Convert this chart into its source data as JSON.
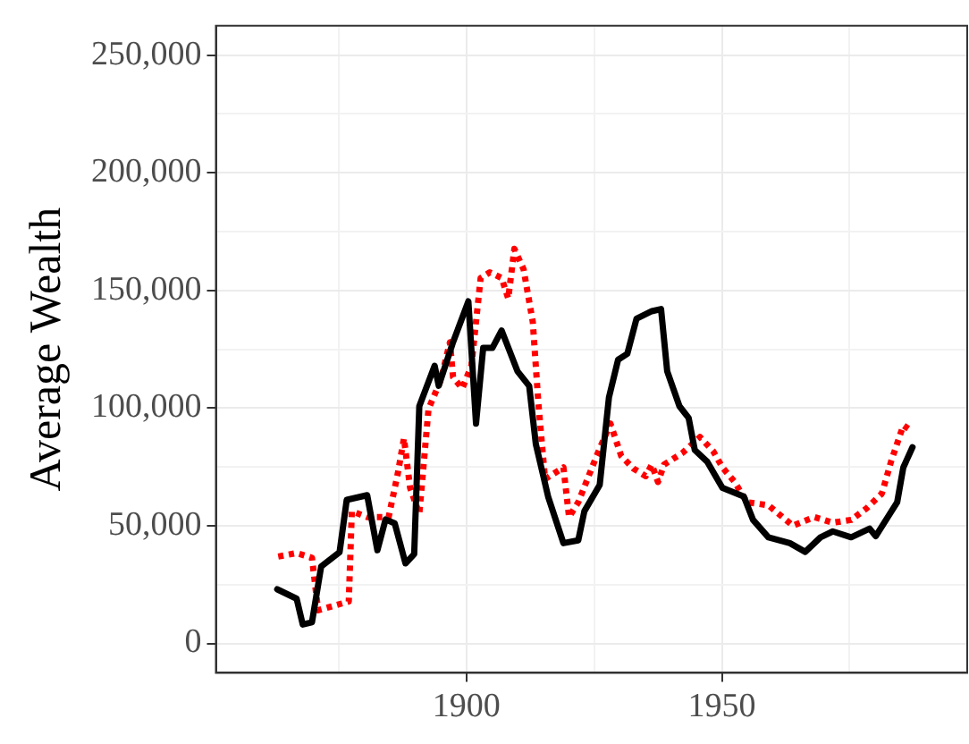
{
  "chart_data": {
    "type": "line",
    "ylabel": "Average Wealth",
    "xlim": [
      1851,
      1998
    ],
    "ylim": [
      -12500,
      262500
    ],
    "xticks": [
      {
        "value": 1875,
        "label": null
      },
      1900,
      {
        "value": 1925,
        "label": null
      },
      1950,
      {
        "value": 1975,
        "label": null
      }
    ],
    "yticks": [
      {
        "value": 0,
        "label": "0"
      },
      {
        "value": 25000,
        "label": null
      },
      {
        "value": 50000,
        "label": "50,000"
      },
      {
        "value": 75000,
        "label": null
      },
      {
        "value": 100000,
        "label": "100,000"
      },
      {
        "value": 125000,
        "label": null
      },
      {
        "value": 150000,
        "label": "150,000"
      },
      {
        "value": 175000,
        "label": null
      },
      {
        "value": 200000,
        "label": "200,000"
      },
      {
        "value": 225000,
        "label": null
      },
      {
        "value": 250000,
        "label": "250,000"
      }
    ],
    "grid": true,
    "legend": false,
    "marker": "none",
    "series": [
      {
        "color": "#000000",
        "line_style": "solid",
        "x": [
          1863.0,
          1866.8,
          1868.0,
          1869.8,
          1871.6,
          1875.2,
          1876.6,
          1880.6,
          1882.6,
          1884.2,
          1886.0,
          1888.1,
          1889.8,
          1890.8,
          1893.8,
          1894.6,
          1897.4,
          1900.4,
          1901.9,
          1903.3,
          1905.1,
          1906.9,
          1910.0,
          1912.3,
          1913.6,
          1916.0,
          1919.0,
          1921.9,
          1923.1,
          1926.1,
          1927.9,
          1929.7,
          1931.5,
          1933.3,
          1936.3,
          1938.1,
          1939.3,
          1941.7,
          1943.5,
          1944.7,
          1947.1,
          1950.1,
          1954.3,
          1956.1,
          1959.1,
          1963.3,
          1966.3,
          1969.3,
          1971.7,
          1975.3,
          1978.9,
          1980.1,
          1984.3,
          1985.5,
          1987.3
        ],
        "values": [
          23000,
          19000,
          8000,
          9000,
          32700,
          38800,
          61000,
          63000,
          39600,
          52700,
          51000,
          34000,
          38000,
          100800,
          118000,
          109500,
          128000,
          145400,
          93400,
          125600,
          125600,
          133000,
          115700,
          109400,
          84700,
          62400,
          42600,
          43800,
          56200,
          67400,
          104500,
          120600,
          123100,
          138000,
          141200,
          142100,
          115700,
          100800,
          95800,
          82200,
          77300,
          66100,
          62400,
          52500,
          45100,
          42600,
          38900,
          45100,
          47600,
          45100,
          48800,
          45600,
          60000,
          74800,
          83400
        ]
      },
      {
        "color": "#ff0000",
        "line_style": "dotted",
        "x": [
          1863.2,
          1866.8,
          1869.8,
          1871.0,
          1877.0,
          1877.6,
          1880.6,
          1884.8,
          1886.6,
          1887.8,
          1889.0,
          1890.8,
          1892.6,
          1895.0,
          1896.8,
          1897.4,
          1899.2,
          1901.0,
          1902.8,
          1904.6,
          1906.9,
          1908.2,
          1909.4,
          1911.2,
          1913.0,
          1914.1,
          1915.4,
          1919.0,
          1920.1,
          1921.9,
          1925.5,
          1928.2,
          1930.3,
          1932.7,
          1935.1,
          1936.3,
          1937.5,
          1938.7,
          1942.3,
          1945.7,
          1948.3,
          1950.1,
          1952.5,
          1954.9,
          1959.1,
          1963.9,
          1968.1,
          1971.7,
          1975.3,
          1978.3,
          1981.3,
          1983.1,
          1985.5,
          1986.7
        ],
        "values": [
          36900,
          38400,
          36400,
          14100,
          17800,
          56200,
          53700,
          53700,
          72300,
          87200,
          66100,
          55000,
          99600,
          112000,
          128000,
          113200,
          108300,
          118100,
          155300,
          157700,
          155300,
          146600,
          167700,
          159000,
          136700,
          102000,
          69800,
          74800,
          53700,
          60000,
          79700,
          93400,
          79700,
          74300,
          71100,
          76000,
          68600,
          76000,
          81000,
          87700,
          81700,
          74800,
          68600,
          60000,
          58700,
          50000,
          53700,
          51300,
          52500,
          57400,
          63700,
          77300,
          92700,
          90900
        ]
      }
    ]
  }
}
